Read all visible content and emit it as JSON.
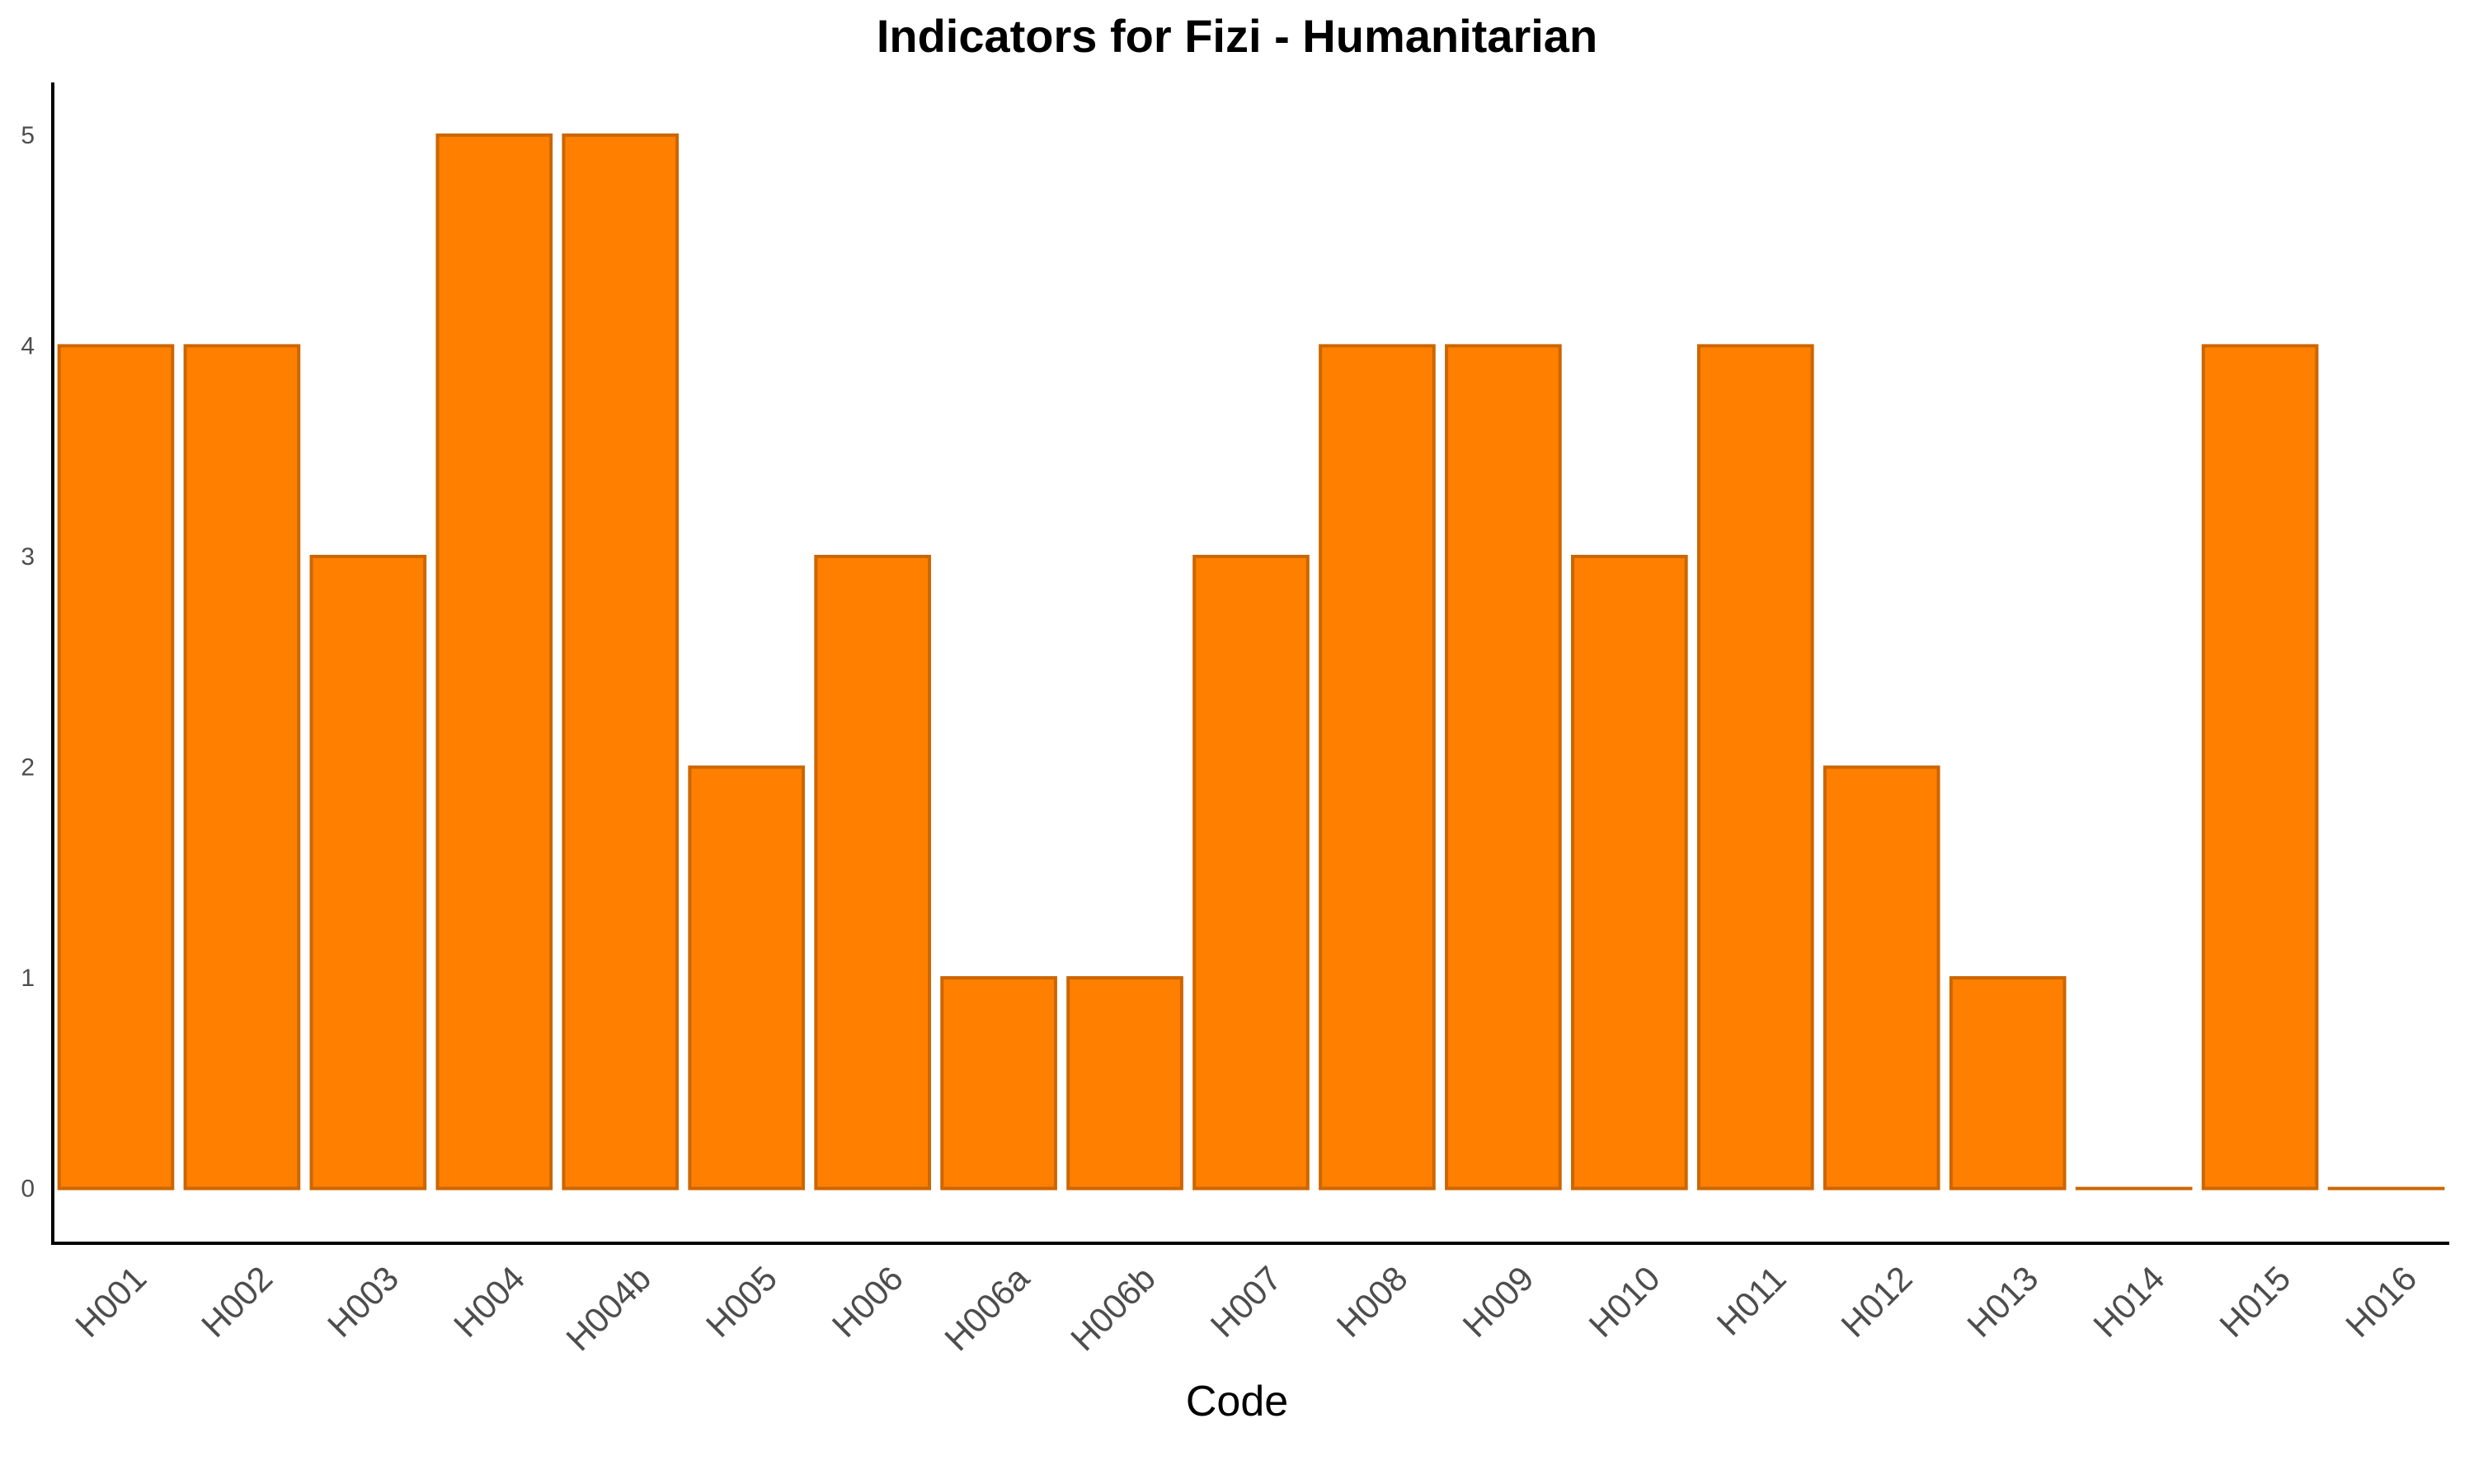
{
  "chart_data": {
    "type": "bar",
    "title": "Indicators for Fizi - Humanitarian",
    "xlabel": "Code",
    "ylabel": "",
    "categories": [
      "H001",
      "H002",
      "H003",
      "H004",
      "H004b",
      "H005",
      "H006",
      "H006a",
      "H006b",
      "H007",
      "H008",
      "H009",
      "H010",
      "H011",
      "H012",
      "H013",
      "H014",
      "H015",
      "H016"
    ],
    "values": [
      4,
      4,
      3,
      5,
      5,
      2,
      3,
      1,
      1,
      3,
      4,
      4,
      3,
      4,
      2,
      1,
      0,
      4,
      0
    ],
    "yticks": [
      0,
      1,
      2,
      3,
      4,
      5
    ],
    "ylim": [
      -0.26,
      5.25
    ],
    "grid": false,
    "legend": "none",
    "colors": {
      "bar_fill": "#FF7F00",
      "bar_stroke": "#CC6600",
      "axis": "#000000",
      "tick_label": "#4d4d4d"
    }
  }
}
